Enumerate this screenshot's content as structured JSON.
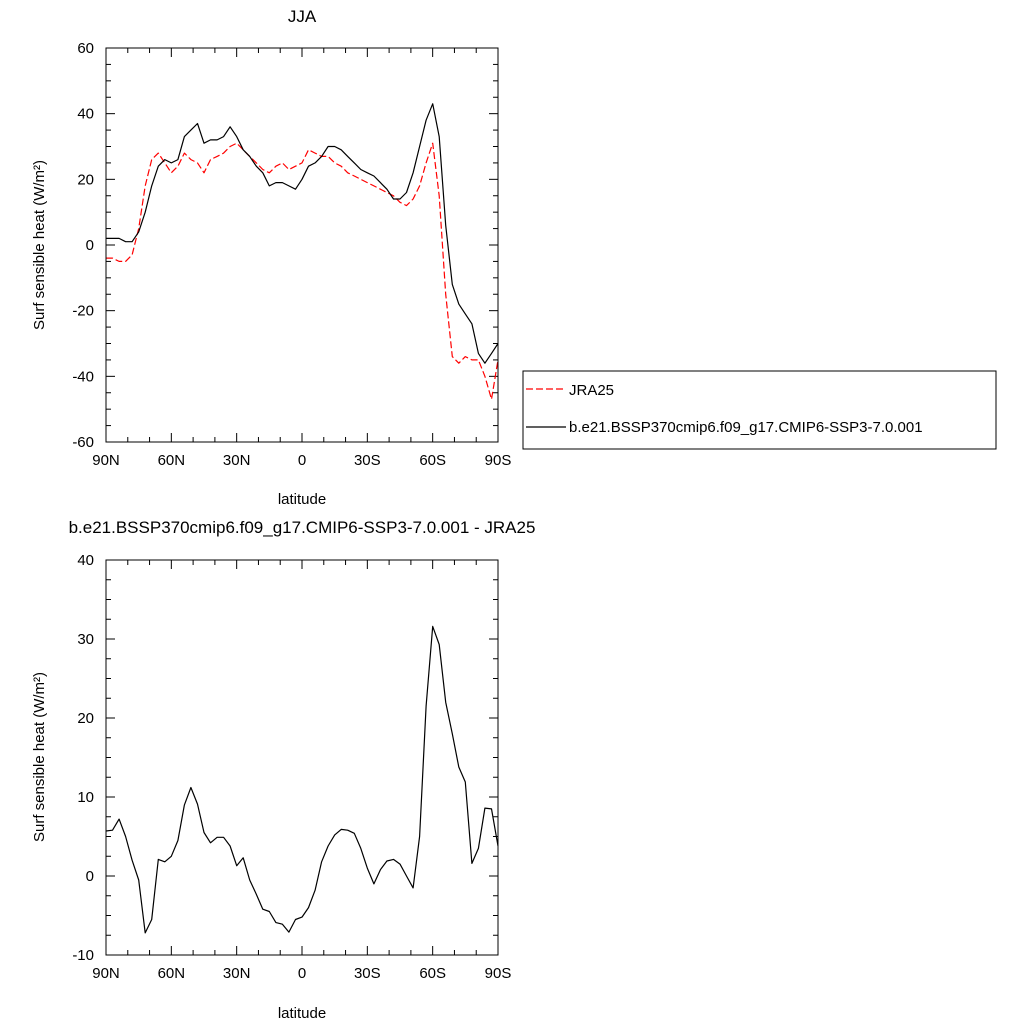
{
  "chart_data": [
    {
      "type": "line",
      "title": "JJA",
      "xlabel": "latitude",
      "ylabel": "Surf sensible heat (W/m²)",
      "xlim": [
        90,
        -90
      ],
      "ylim": [
        -60,
        60
      ],
      "x_tick_values": [
        90,
        60,
        30,
        0,
        -30,
        -60,
        -90
      ],
      "x_tick_labels": [
        "90N",
        "60N",
        "30N",
        "0",
        "30S",
        "60S",
        "90S"
      ],
      "y_tick_values": [
        -60,
        -40,
        -20,
        0,
        20,
        40,
        60
      ],
      "y_tick_labels": [
        "-60",
        "-40",
        "-20",
        "0",
        "20",
        "40",
        "60"
      ],
      "legend_position": "right",
      "series": [
        {
          "name": "JRA25",
          "color": "#ff0000",
          "dash": "dashed",
          "x": [
            90,
            87,
            84,
            81,
            78,
            75,
            72,
            69,
            66,
            63,
            60,
            57,
            54,
            51,
            48,
            45,
            42,
            39,
            36,
            33,
            30,
            27,
            24,
            21,
            18,
            15,
            12,
            9,
            6,
            3,
            0,
            -3,
            -6,
            -9,
            -12,
            -15,
            -18,
            -21,
            -24,
            -27,
            -30,
            -33,
            -36,
            -39,
            -42,
            -45,
            -48,
            -51,
            -54,
            -57,
            -60,
            -63,
            -66,
            -69,
            -72,
            -75,
            -78,
            -81,
            -84,
            -87,
            -90
          ],
          "y": [
            -4,
            -4,
            -5,
            -5,
            -3,
            5,
            18,
            26,
            28,
            25,
            22,
            24,
            28,
            26,
            25,
            22,
            26,
            27,
            28,
            30,
            31,
            29,
            27,
            25,
            23,
            22,
            24,
            25,
            23,
            24,
            25,
            29,
            28,
            27,
            27,
            25,
            24,
            22,
            21,
            20,
            19,
            18,
            17,
            16,
            15,
            13,
            12,
            14,
            18,
            25,
            31,
            15,
            -15,
            -34,
            -36,
            -34,
            -35,
            -35,
            -40,
            -47,
            -35
          ]
        },
        {
          "name": "b.e21.BSSP370cmip6.f09_g17.CMIP6-SSP3-7.0.001",
          "color": "#000000",
          "dash": "solid",
          "x": [
            90,
            87,
            84,
            81,
            78,
            75,
            72,
            69,
            66,
            63,
            60,
            57,
            54,
            51,
            48,
            45,
            42,
            39,
            36,
            33,
            30,
            27,
            24,
            21,
            18,
            15,
            12,
            9,
            6,
            3,
            0,
            -3,
            -6,
            -9,
            -12,
            -15,
            -18,
            -21,
            -24,
            -27,
            -30,
            -33,
            -36,
            -39,
            -42,
            -45,
            -48,
            -51,
            -54,
            -57,
            -60,
            -63,
            -66,
            -69,
            -72,
            -75,
            -78,
            -81,
            -84,
            -87,
            -90
          ],
          "y": [
            2,
            2,
            2,
            1,
            1,
            4,
            10,
            18,
            24,
            26,
            25,
            26,
            33,
            35,
            37,
            31,
            32,
            32,
            33,
            36,
            33,
            29,
            27,
            24,
            22,
            18,
            19,
            19,
            18,
            17,
            20,
            24,
            25,
            27,
            30,
            30,
            29,
            27,
            25,
            23,
            22,
            21,
            19,
            17,
            14,
            14,
            16,
            22,
            30,
            38,
            43,
            33,
            6,
            -12,
            -18,
            -21,
            -24,
            -33,
            -36,
            -33,
            -30
          ]
        }
      ]
    },
    {
      "type": "line",
      "title": "b.e21.BSSP370cmip6.f09_g17.CMIP6-SSP3-7.0.001 - JRA25",
      "xlabel": "latitude",
      "ylabel": "Surf sensible heat (W/m²)",
      "xlim": [
        90,
        -90
      ],
      "ylim": [
        -10,
        40
      ],
      "x_tick_values": [
        90,
        60,
        30,
        0,
        -30,
        -60,
        -90
      ],
      "x_tick_labels": [
        "90N",
        "60N",
        "30N",
        "0",
        "30S",
        "60S",
        "90S"
      ],
      "y_tick_values": [
        -10,
        0,
        10,
        20,
        30,
        40
      ],
      "y_tick_labels": [
        "-10",
        "0",
        "10",
        "20",
        "30",
        "40"
      ],
      "series": [
        {
          "color": "#000000",
          "dash": "solid",
          "x": [
            90,
            87,
            84,
            81,
            78,
            75,
            72,
            69,
            66,
            63,
            60,
            57,
            54,
            51,
            48,
            45,
            42,
            39,
            36,
            33,
            30,
            27,
            24,
            21,
            18,
            15,
            12,
            9,
            6,
            3,
            0,
            -3,
            -6,
            -9,
            -12,
            -15,
            -18,
            -21,
            -24,
            -27,
            -30,
            -33,
            -36,
            -39,
            -42,
            -45,
            -48,
            -51,
            -54,
            -57,
            -60,
            -63,
            -66,
            -69,
            -72,
            -75,
            -78,
            -81,
            -84,
            -87,
            -90
          ],
          "y": [
            5.7,
            5.8,
            7.2,
            5,
            2,
            -0.5,
            -7.2,
            -5.5,
            2.1,
            1.8,
            2.5,
            4.5,
            9,
            11.2,
            9.1,
            5.5,
            4.2,
            4.9,
            4.9,
            3.8,
            1.3,
            2.3,
            -0.5,
            -2.3,
            -4.2,
            -4.5,
            -5.9,
            -6.1,
            -7.1,
            -5.5,
            -5.2,
            -4,
            -1.8,
            1.8,
            3.8,
            5.2,
            5.9,
            5.8,
            5.4,
            3.5,
            1,
            -1,
            0.8,
            1.9,
            2.1,
            1.5,
            0,
            -1.5,
            5,
            21.5,
            31.6,
            29.3,
            22,
            18,
            13.8,
            11.9,
            1.6,
            3.5,
            8.6,
            8.5,
            3.8
          ]
        }
      ]
    }
  ]
}
